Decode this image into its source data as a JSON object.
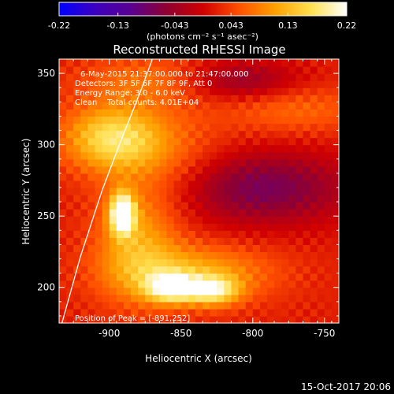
{
  "colorbar": {
    "ticks": [
      "-0.22",
      "-0.13",
      "-0.043",
      "0.043",
      "0.13",
      "0.22"
    ],
    "tick_values": [
      -0.22,
      -0.13,
      -0.043,
      0.043,
      0.13,
      0.22
    ],
    "range": [
      -0.22,
      0.22
    ],
    "unit_label": "(photons cm⁻² s⁻¹ asec⁻²)",
    "colors": [
      "#0000ff",
      "#3c00c0",
      "#5a0090",
      "#900030",
      "#d00000",
      "#ff5000",
      "#ffa000",
      "#ffe050",
      "#ffffff"
    ]
  },
  "footer": {
    "timestamp": "15-Oct-2017 20:06"
  },
  "chart_data": {
    "type": "heatmap",
    "title": "Reconstructed RHESSI Image",
    "xlabel": "Heliocentric X (arcsec)",
    "ylabel": "Heliocentric Y (arcsec)",
    "xlim": [
      -935,
      -740
    ],
    "ylim": [
      175,
      360
    ],
    "x_ticks": [
      -900,
      -850,
      -800,
      -750
    ],
    "x_tick_labels": [
      "-900",
      "-850",
      "-800",
      "-750"
    ],
    "y_ticks": [
      200,
      250,
      300,
      350
    ],
    "y_tick_labels": [
      "200",
      "250",
      "300",
      "350"
    ],
    "annotations": [
      "6-May-2015 21:37:00.000 to 21:47:00.000",
      "Detectors: 3F 5F 6F 7F 8F 9F, Att 0",
      "Energy Range: 3.0 - 6.0 keV",
      "Clean    Total counts: 4.01E+04"
    ],
    "peak_label": "Position of Peak = [-891,252]",
    "peak": [
      -891,
      252
    ],
    "limb_curve": [
      [
        -933,
        175
      ],
      [
        -920,
        222
      ],
      [
        -905,
        268
      ],
      [
        -893,
        300
      ],
      [
        -878,
        338
      ],
      [
        -870,
        360
      ]
    ],
    "sources": [
      {
        "x": -891,
        "y": 252,
        "sx": 6,
        "sy": 10,
        "amp": 0.22
      },
      {
        "x": -881,
        "y": 232,
        "sx": 20,
        "sy": 28,
        "amp": 0.09
      },
      {
        "x": -898,
        "y": 305,
        "sx": 24,
        "sy": 16,
        "amp": 0.14
      },
      {
        "x": -857,
        "y": 200,
        "sx": 12,
        "sy": 7,
        "amp": 0.16
      },
      {
        "x": -828,
        "y": 198,
        "sx": 13,
        "sy": 7,
        "amp": 0.14
      },
      {
        "x": -842,
        "y": 210,
        "sx": 38,
        "sy": 14,
        "amp": 0.1
      },
      {
        "x": -795,
        "y": 270,
        "sx": 45,
        "sy": 18,
        "amp": -0.1
      },
      {
        "x": -870,
        "y": 345,
        "sx": 35,
        "sy": 12,
        "amp": 0.06
      },
      {
        "x": -860,
        "y": 290,
        "sx": 30,
        "sy": 25,
        "amp": 0.05
      },
      {
        "x": -770,
        "y": 325,
        "sx": 35,
        "sy": 12,
        "amp": 0.05
      },
      {
        "x": -812,
        "y": 345,
        "sx": 30,
        "sy": 10,
        "amp": -0.08
      }
    ]
  }
}
